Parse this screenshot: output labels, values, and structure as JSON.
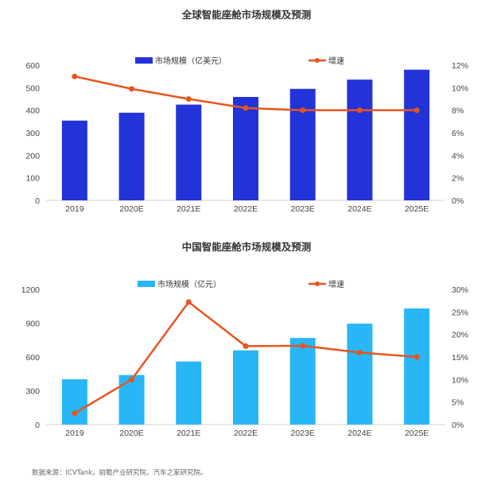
{
  "chart_data": [
    {
      "type": "bar",
      "title": "全球智能座舱市场规模及预测",
      "categories": [
        "2019",
        "2020E",
        "2021E",
        "2022E",
        "2023E",
        "2024E",
        "2025E"
      ],
      "series": [
        {
          "name": "市场规模（亿美元）",
          "type": "bar",
          "axis": "left",
          "color": "#2233d8",
          "values": [
            354,
            389,
            425,
            459,
            495,
            536,
            580
          ]
        },
        {
          "name": "增速",
          "type": "line",
          "axis": "right",
          "color": "#e8541e",
          "values": [
            11.0,
            9.9,
            9.0,
            8.2,
            8.0,
            8.0,
            8.0
          ]
        }
      ],
      "ylim": [
        0,
        600
      ],
      "yticks": [
        "0",
        "100",
        "200",
        "300",
        "400",
        "500",
        "600"
      ],
      "y2lim": [
        0,
        12
      ],
      "y2ticks": [
        "0%",
        "2%",
        "4%",
        "6%",
        "8%",
        "10%",
        "12%"
      ],
      "legend": "top",
      "grid": false
    },
    {
      "type": "bar",
      "title": "中国智能座舱市场规模及预测",
      "categories": [
        "2019",
        "2020E",
        "2021E",
        "2022E",
        "2023E",
        "2024E",
        "2025E"
      ],
      "series": [
        {
          "name": "市场规模（亿元）",
          "type": "bar",
          "axis": "left",
          "color": "#29b6f6",
          "values": [
            402,
            440,
            560,
            659,
            769,
            896,
            1031
          ]
        },
        {
          "name": "增速",
          "type": "line",
          "axis": "right",
          "color": "#e8541e",
          "values": [
            2.5,
            10.0,
            27.2,
            17.4,
            17.5,
            16.0,
            15.0
          ]
        }
      ],
      "ylim": [
        0,
        1200
      ],
      "yticks": [
        "0",
        "300",
        "600",
        "900",
        "1200"
      ],
      "y2lim": [
        0,
        30
      ],
      "y2ticks": [
        "0%",
        "5%",
        "10%",
        "15%",
        "20%",
        "25%",
        "30%"
      ],
      "legend": "top",
      "grid": false
    }
  ],
  "footer": "数据来源：ICVTank，前瞻产业研究院，汽车之家研究院。"
}
